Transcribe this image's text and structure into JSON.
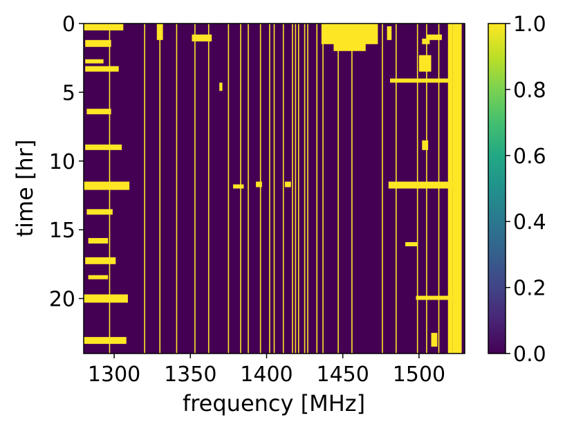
{
  "chart_data": {
    "type": "heatmap",
    "xlabel": "frequency [MHz]",
    "ylabel": "time [hr]",
    "xlim": [
      1280,
      1530
    ],
    "ylim": [
      24,
      0
    ],
    "x_ticks": [
      1300,
      1350,
      1400,
      1450,
      1500
    ],
    "x_tick_labels": [
      "1300",
      "1350",
      "1400",
      "1450",
      "1500"
    ],
    "y_ticks": [
      0,
      5,
      10,
      15,
      20
    ],
    "y_tick_labels": [
      "0",
      "5",
      "10",
      "15",
      "20"
    ],
    "colorbar": {
      "vmin": 0.0,
      "vmax": 1.0,
      "ticks": [
        0.0,
        0.2,
        0.4,
        0.6,
        0.8,
        1.0
      ],
      "tick_labels": [
        "0.0",
        "0.2",
        "0.4",
        "0.6",
        "0.8",
        "1.0"
      ],
      "colormap": "viridis"
    },
    "background_value": 0,
    "flag_value": 1,
    "persistent_flagged_channels_mhz": [
      1297,
      1320,
      1330,
      1341,
      1353,
      1362,
      1375,
      1383,
      1388,
      1396,
      1402,
      1405,
      1411,
      1417,
      1419,
      1421,
      1425,
      1427,
      1433,
      1437,
      1447,
      1456,
      1476,
      1485,
      1499,
      1505,
      1513
    ],
    "fully_flagged_band_mhz": [
      1522,
      1528
    ],
    "flagged_blocks": [
      {
        "f0": 1280,
        "f1": 1306,
        "t0": 0,
        "t1": 0.5
      },
      {
        "f0": 1281,
        "f1": 1298,
        "t0": 1.2,
        "t1": 1.7
      },
      {
        "f0": 1281,
        "f1": 1293,
        "t0": 2.6,
        "t1": 2.9
      },
      {
        "f0": 1281,
        "f1": 1303,
        "t0": 3.1,
        "t1": 3.5
      },
      {
        "f0": 1282,
        "f1": 1298,
        "t0": 6.2,
        "t1": 6.6
      },
      {
        "f0": 1281,
        "f1": 1305,
        "t0": 8.8,
        "t1": 9.2
      },
      {
        "f0": 1280,
        "f1": 1310,
        "t0": 11.5,
        "t1": 12.1
      },
      {
        "f0": 1282,
        "f1": 1299,
        "t0": 13.5,
        "t1": 13.9
      },
      {
        "f0": 1283,
        "f1": 1296,
        "t0": 15.6,
        "t1": 16.0
      },
      {
        "f0": 1281,
        "f1": 1301,
        "t0": 17.0,
        "t1": 17.5
      },
      {
        "f0": 1283,
        "f1": 1296,
        "t0": 18.3,
        "t1": 18.6
      },
      {
        "f0": 1280,
        "f1": 1309,
        "t0": 19.7,
        "t1": 20.3
      },
      {
        "f0": 1280,
        "f1": 1308,
        "t0": 22.8,
        "t1": 23.3
      },
      {
        "f0": 1328,
        "f1": 1332,
        "t0": 0,
        "t1": 1.2
      },
      {
        "f0": 1351,
        "f1": 1364,
        "t0": 0.8,
        "t1": 1.3
      },
      {
        "f0": 1369,
        "f1": 1371,
        "t0": 4.3,
        "t1": 4.9
      },
      {
        "f0": 1378,
        "f1": 1385,
        "t0": 11.7,
        "t1": 12.0
      },
      {
        "f0": 1393,
        "f1": 1397,
        "t0": 11.5,
        "t1": 11.9
      },
      {
        "f0": 1412,
        "f1": 1416,
        "t0": 11.5,
        "t1": 11.9
      },
      {
        "f0": 1436,
        "f1": 1473,
        "t0": 0,
        "t1": 1.5
      },
      {
        "f0": 1444,
        "f1": 1465,
        "t0": 1.4,
        "t1": 2.0
      },
      {
        "f0": 1479,
        "f1": 1482,
        "t0": 0.2,
        "t1": 1.2
      },
      {
        "f0": 1481,
        "f1": 1521,
        "t0": 4.0,
        "t1": 4.3
      },
      {
        "f0": 1480,
        "f1": 1522,
        "t0": 11.5,
        "t1": 12.0
      },
      {
        "f0": 1491,
        "f1": 1499,
        "t0": 15.9,
        "t1": 16.2
      },
      {
        "f0": 1498,
        "f1": 1522,
        "t0": 19.8,
        "t1": 20.1
      },
      {
        "f0": 1502,
        "f1": 1507,
        "t0": 1.1,
        "t1": 1.5
      },
      {
        "f0": 1500,
        "f1": 1508,
        "t0": 2.3,
        "t1": 3.5
      },
      {
        "f0": 1505,
        "f1": 1515,
        "t0": 0.8,
        "t1": 1.2
      },
      {
        "f0": 1508,
        "f1": 1512,
        "t0": 22.5,
        "t1": 23.5
      },
      {
        "f0": 1502,
        "f1": 1506,
        "t0": 8.5,
        "t1": 9.2
      },
      {
        "f0": 1519,
        "f1": 1522,
        "t0": 0,
        "t1": 24
      }
    ]
  }
}
